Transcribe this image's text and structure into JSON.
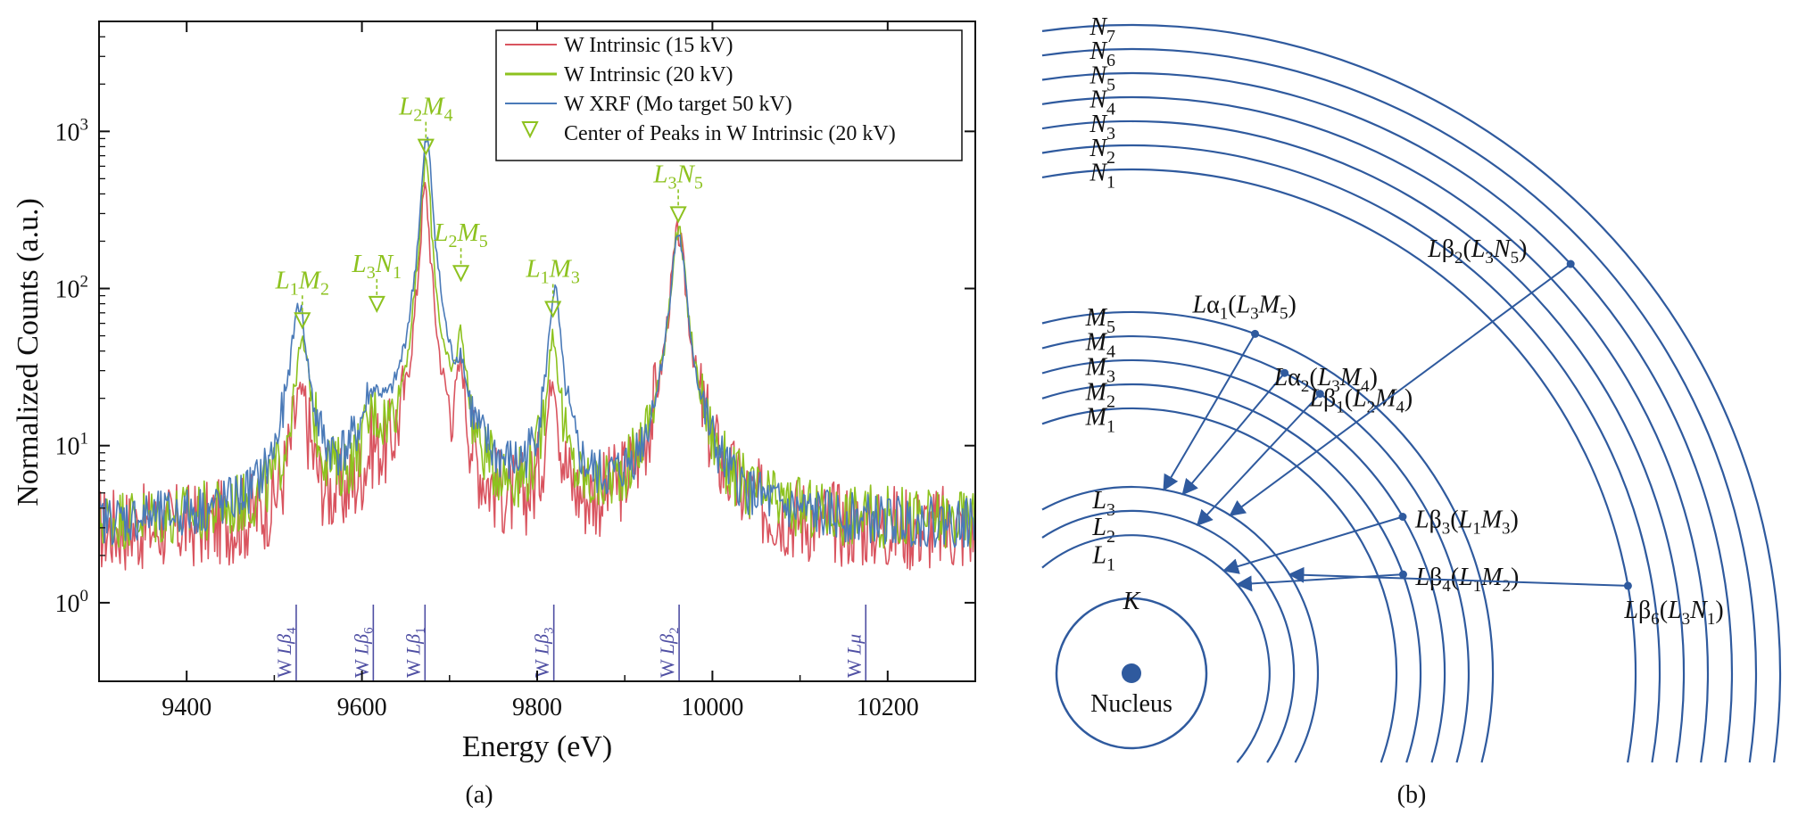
{
  "chart_data": {
    "type": "line",
    "panel_a": {
      "caption": "(a)",
      "xlabel": "Energy (eV)",
      "ylabel": "Normalized Counts (a.u.)",
      "xlim": [
        9300,
        10300
      ],
      "ylim_log10": [
        -0.5,
        3.7
      ],
      "x_ticks": [
        "9400",
        "9600",
        "9800",
        "10000",
        "10200"
      ],
      "y_ticks": [
        {
          "base": "10",
          "exp": "0"
        },
        {
          "base": "10",
          "exp": "1"
        },
        {
          "base": "10",
          "exp": "2"
        },
        {
          "base": "10",
          "exp": "3"
        }
      ],
      "series": [
        {
          "name": "W Intrinsic (15 kV)",
          "color": "#d9545f",
          "noise": 0.28,
          "background": 2.8,
          "peaks": [
            [
              9530,
              18,
              18
            ],
            [
              9613,
              4,
              24
            ],
            [
              9672,
              420,
              10
            ],
            [
              9713,
              24,
              11
            ],
            [
              9818,
              24,
              12
            ],
            [
              9961,
              220,
              15
            ]
          ]
        },
        {
          "name": "W Intrinsic (20 kV)",
          "color": "#8dc21f",
          "noise": 0.2,
          "background": 3.2,
          "peaks": [
            [
              9532,
              40,
              17
            ],
            [
              9613,
              8,
              24
            ],
            [
              9673,
              650,
              10
            ],
            [
              9713,
              40,
              11
            ],
            [
              9818,
              45,
              12
            ],
            [
              9961,
              225,
              15
            ]
          ]
        },
        {
          "name": "W XRF (Mo target 50 kV)",
          "color": "#4a7ab8",
          "noise": 0.16,
          "background": 3.0,
          "peaks": [
            [
              9528,
              75,
              16
            ],
            [
              9613,
              12,
              26
            ],
            [
              9674,
              880,
              11
            ],
            [
              9713,
              18,
              11
            ],
            [
              9820,
              95,
              12
            ],
            [
              9961,
              220,
              15
            ]
          ]
        }
      ],
      "legend": {
        "position": "top-right",
        "entries": [
          "W Intrinsic (15 kV)",
          "W Intrinsic (20 kV)",
          "W XRF (Mo target 50 kV)",
          "Center of Peaks in W Intrinsic (20 kV)"
        ]
      },
      "peak_markers": [
        {
          "base": "L",
          "s1": "1",
          "mid": "M",
          "s2": "2",
          "x": 9532,
          "y": 55
        },
        {
          "base": "L",
          "s1": "3",
          "mid": "N",
          "s2": "1",
          "x": 9617,
          "y": 70
        },
        {
          "base": "L",
          "s1": "2",
          "mid": "M",
          "s2": "4",
          "x": 9673,
          "y": 700
        },
        {
          "base": "L",
          "s1": "2",
          "mid": "M",
          "s2": "5",
          "x": 9713,
          "y": 110
        },
        {
          "base": "L",
          "s1": "1",
          "mid": "M",
          "s2": "3",
          "x": 9818,
          "y": 65
        },
        {
          "base": "L",
          "s1": "3",
          "mid": "N",
          "s2": "5",
          "x": 9961,
          "y": 260
        }
      ],
      "reference_lines": [
        {
          "label_pre": "W ",
          "label_main": "Lβ",
          "label_sub": "4",
          "x": 9525
        },
        {
          "label_pre": "W ",
          "label_main": "Lβ",
          "label_sub": "6",
          "x": 9613
        },
        {
          "label_pre": "W ",
          "label_main": "Lβ",
          "label_sub": "1",
          "x": 9672
        },
        {
          "label_pre": "W ",
          "label_main": "Lβ",
          "label_sub": "3",
          "x": 9819
        },
        {
          "label_pre": "W ",
          "label_main": "Lβ",
          "label_sub": "2",
          "x": 9962
        },
        {
          "label_pre": "W ",
          "label_main": "Lμ",
          "label_sub": "",
          "x": 10175
        }
      ]
    },
    "panel_b": {
      "caption": "(b)",
      "type": "diagram",
      "nucleus_label": "Nucleus",
      "k_label": "K",
      "shell_groups": [
        {
          "letter": "L",
          "subs": [
            "3",
            "2",
            "1"
          ]
        },
        {
          "letter": "M",
          "subs": [
            "5",
            "4",
            "3",
            "2",
            "1"
          ]
        },
        {
          "letter": "N",
          "subs": [
            "7",
            "6",
            "5",
            "4",
            "3",
            "2",
            "1"
          ]
        }
      ],
      "transitions": [
        {
          "greek": "Lα",
          "sub": "1",
          "from": "L",
          "fs": "3",
          "to": "M",
          "ts": "5"
        },
        {
          "greek": "Lα",
          "sub": "2",
          "from": "L",
          "fs": "3",
          "to": "M",
          "ts": "4"
        },
        {
          "greek": "Lβ",
          "sub": "1",
          "from": "L",
          "fs": "2",
          "to": "M",
          "ts": "4"
        },
        {
          "greek": "Lβ",
          "sub": "2",
          "from": "L",
          "fs": "3",
          "to": "N",
          "ts": "5"
        },
        {
          "greek": "Lβ",
          "sub": "3",
          "from": "L",
          "fs": "1",
          "to": "M",
          "ts": "3"
        },
        {
          "greek": "Lβ",
          "sub": "4",
          "from": "L",
          "fs": "1",
          "to": "M",
          "ts": "2"
        },
        {
          "greek": "Lβ",
          "sub": "6",
          "from": "L",
          "fs": "3",
          "to": "N",
          "ts": "1"
        }
      ],
      "color": "#2f5a9e"
    }
  }
}
